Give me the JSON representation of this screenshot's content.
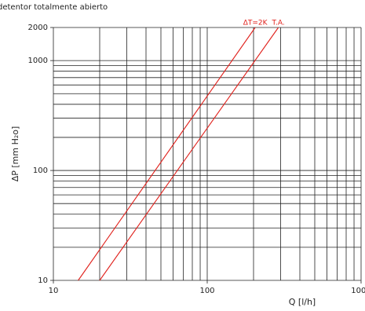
{
  "chart_data": {
    "type": "line",
    "title": "detentor totalmente abierto",
    "xlabel": "Q [l/h]",
    "ylabel": "ΔP [mm H₂o]",
    "log_x": true,
    "log_y": true,
    "xlim": [
      10,
      1000
    ],
    "ylim": [
      10,
      2000
    ],
    "xticks": [
      10,
      100,
      1000
    ],
    "yticks": [
      10,
      100,
      1000,
      2000
    ],
    "xgrid": [
      10,
      20,
      30,
      40,
      50,
      60,
      70,
      80,
      90,
      100,
      200,
      300,
      400,
      500,
      600,
      700,
      800,
      900,
      1000
    ],
    "ygrid": [
      10,
      20,
      30,
      40,
      50,
      60,
      70,
      80,
      90,
      100,
      200,
      300,
      400,
      500,
      600,
      700,
      800,
      900,
      1000,
      2000
    ],
    "series": [
      {
        "name": "ΔT=2K",
        "color": "#e0201b",
        "x": [
          14.5,
          205
        ],
        "values": [
          10,
          2000
        ]
      },
      {
        "name": "T.A.",
        "color": "#e0201b",
        "x": [
          20,
          290
        ],
        "values": [
          10,
          2000
        ]
      }
    ]
  }
}
